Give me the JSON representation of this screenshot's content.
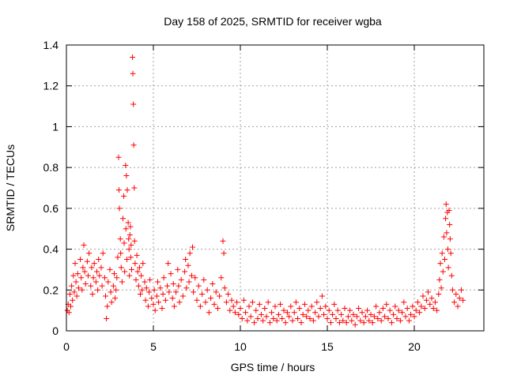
{
  "chart_data": {
    "type": "scatter",
    "title": "Day 158 of 2025, SRMTID for receiver wgba",
    "xlabel": "GPS time / hours",
    "ylabel": "SRMTID / TECUs",
    "xlim": [
      0,
      24
    ],
    "ylim": [
      0,
      1.4
    ],
    "xticks": [
      0,
      5,
      10,
      15,
      20
    ],
    "yticks": [
      0,
      0.2,
      0.4,
      0.6,
      0.8,
      1.0,
      1.2,
      1.4
    ],
    "xtick_labels": [
      "0",
      "5",
      "10",
      "15",
      "20"
    ],
    "ytick_labels": [
      "0",
      "0.2",
      "0.4",
      "0.6",
      "0.8",
      "1",
      "1.2",
      "1.4"
    ],
    "grid": true,
    "marker": "+",
    "color": "#ff0000",
    "series": [
      {
        "name": "SRMTID",
        "points": [
          [
            0.05,
            0.1
          ],
          [
            0.1,
            0.13
          ],
          [
            0.15,
            0.09
          ],
          [
            0.2,
            0.18
          ],
          [
            0.25,
            0.12
          ],
          [
            0.3,
            0.22
          ],
          [
            0.35,
            0.15
          ],
          [
            0.4,
            0.27
          ],
          [
            0.45,
            0.19
          ],
          [
            0.5,
            0.33
          ],
          [
            0.55,
            0.24
          ],
          [
            0.6,
            0.17
          ],
          [
            0.65,
            0.28
          ],
          [
            0.7,
            0.21
          ],
          [
            0.8,
            0.35
          ],
          [
            0.85,
            0.26
          ],
          [
            0.9,
            0.2
          ],
          [
            0.95,
            0.31
          ],
          [
            1.0,
            0.42
          ],
          [
            1.05,
            0.29
          ],
          [
            1.1,
            0.23
          ],
          [
            1.2,
            0.34
          ],
          [
            1.25,
            0.27
          ],
          [
            1.3,
            0.38
          ],
          [
            1.4,
            0.22
          ],
          [
            1.45,
            0.31
          ],
          [
            1.5,
            0.18
          ],
          [
            1.55,
            0.26
          ],
          [
            1.6,
            0.33
          ],
          [
            1.7,
            0.24
          ],
          [
            1.75,
            0.29
          ],
          [
            1.8,
            0.2
          ],
          [
            1.85,
            0.35
          ],
          [
            1.9,
            0.27
          ],
          [
            2.0,
            0.31
          ],
          [
            2.05,
            0.22
          ],
          [
            2.1,
            0.38
          ],
          [
            2.2,
            0.26
          ],
          [
            2.25,
            0.17
          ],
          [
            2.3,
            0.06
          ],
          [
            2.35,
            0.12
          ],
          [
            2.4,
            0.24
          ],
          [
            2.5,
            0.3
          ],
          [
            2.55,
            0.19
          ],
          [
            2.6,
            0.14
          ],
          [
            2.7,
            0.22
          ],
          [
            2.75,
            0.28
          ],
          [
            2.8,
            0.16
          ],
          [
            2.85,
            0.2
          ],
          [
            2.9,
            0.26
          ],
          [
            2.95,
            0.36
          ],
          [
            3.0,
            0.85
          ],
          [
            3.02,
            0.69
          ],
          [
            3.05,
            0.6
          ],
          [
            3.1,
            0.45
          ],
          [
            3.12,
            0.38
          ],
          [
            3.15,
            0.31
          ],
          [
            3.2,
            0.24
          ],
          [
            3.25,
            0.55
          ],
          [
            3.3,
            0.66
          ],
          [
            3.32,
            0.43
          ],
          [
            3.35,
            0.29
          ],
          [
            3.4,
            0.81
          ],
          [
            3.42,
            0.5
          ],
          [
            3.45,
            0.76
          ],
          [
            3.48,
            0.35
          ],
          [
            3.5,
            0.69
          ],
          [
            3.55,
            0.53
          ],
          [
            3.58,
            0.45
          ],
          [
            3.6,
            0.4
          ],
          [
            3.62,
            0.27
          ],
          [
            3.65,
            0.47
          ],
          [
            3.68,
            0.51
          ],
          [
            3.7,
            0.36
          ],
          [
            3.72,
            0.42
          ],
          [
            3.75,
            0.3
          ],
          [
            3.8,
            1.34
          ],
          [
            3.82,
            1.26
          ],
          [
            3.85,
            1.11
          ],
          [
            3.87,
            0.91
          ],
          [
            3.9,
            0.7
          ],
          [
            3.92,
            0.44
          ],
          [
            3.95,
            0.33
          ],
          [
            4.0,
            0.25
          ],
          [
            4.05,
            0.37
          ],
          [
            4.1,
            0.29
          ],
          [
            4.15,
            0.22
          ],
          [
            4.2,
            0.31
          ],
          [
            4.25,
            0.18
          ],
          [
            4.3,
            0.27
          ],
          [
            4.35,
            0.2
          ],
          [
            4.4,
            0.33
          ],
          [
            4.5,
            0.24
          ],
          [
            4.55,
            0.15
          ],
          [
            4.6,
            0.21
          ],
          [
            4.7,
            0.12
          ],
          [
            4.75,
            0.19
          ],
          [
            4.8,
            0.25
          ],
          [
            4.9,
            0.16
          ],
          [
            5.0,
            0.13
          ],
          [
            5.05,
            0.2
          ],
          [
            5.1,
            0.1
          ],
          [
            5.2,
            0.17
          ],
          [
            5.25,
            0.24
          ],
          [
            5.3,
            0.14
          ],
          [
            5.4,
            0.21
          ],
          [
            5.5,
            0.11
          ],
          [
            5.55,
            0.18
          ],
          [
            5.6,
            0.26
          ],
          [
            5.7,
            0.15
          ],
          [
            5.8,
            0.22
          ],
          [
            5.85,
            0.33
          ],
          [
            5.9,
            0.19
          ],
          [
            6.0,
            0.28
          ],
          [
            6.1,
            0.16
          ],
          [
            6.15,
            0.23
          ],
          [
            6.2,
            0.12
          ],
          [
            6.3,
            0.19
          ],
          [
            6.4,
            0.3
          ],
          [
            6.45,
            0.22
          ],
          [
            6.5,
            0.14
          ],
          [
            6.6,
            0.25
          ],
          [
            6.7,
            0.17
          ],
          [
            6.8,
            0.29
          ],
          [
            6.85,
            0.35
          ],
          [
            6.9,
            0.21
          ],
          [
            7.0,
            0.32
          ],
          [
            7.05,
            0.24
          ],
          [
            7.1,
            0.38
          ],
          [
            7.2,
            0.27
          ],
          [
            7.25,
            0.41
          ],
          [
            7.3,
            0.19
          ],
          [
            7.4,
            0.26
          ],
          [
            7.5,
            0.15
          ],
          [
            7.6,
            0.22
          ],
          [
            7.7,
            0.12
          ],
          [
            7.8,
            0.18
          ],
          [
            7.9,
            0.25
          ],
          [
            8.0,
            0.14
          ],
          [
            8.1,
            0.2
          ],
          [
            8.2,
            0.09
          ],
          [
            8.3,
            0.16
          ],
          [
            8.4,
            0.23
          ],
          [
            8.5,
            0.13
          ],
          [
            8.6,
            0.19
          ],
          [
            8.7,
            0.11
          ],
          [
            8.8,
            0.17
          ],
          [
            8.9,
            0.26
          ],
          [
            9.0,
            0.44
          ],
          [
            9.05,
            0.38
          ],
          [
            9.1,
            0.21
          ],
          [
            9.2,
            0.14
          ],
          [
            9.3,
            0.18
          ],
          [
            9.4,
            0.1
          ],
          [
            9.5,
            0.15
          ],
          [
            9.6,
            0.12
          ],
          [
            9.7,
            0.09
          ],
          [
            9.8,
            0.14
          ],
          [
            9.9,
            0.08
          ],
          [
            10.0,
            0.11
          ],
          [
            10.1,
            0.06
          ],
          [
            10.2,
            0.15
          ],
          [
            10.3,
            0.09
          ],
          [
            10.4,
            0.05
          ],
          [
            10.5,
            0.12
          ],
          [
            10.6,
            0.07
          ],
          [
            10.7,
            0.14
          ],
          [
            10.8,
            0.04
          ],
          [
            10.9,
            0.1
          ],
          [
            11.0,
            0.06
          ],
          [
            11.1,
            0.13
          ],
          [
            11.2,
            0.08
          ],
          [
            11.3,
            0.05
          ],
          [
            11.4,
            0.11
          ],
          [
            11.5,
            0.07
          ],
          [
            11.6,
            0.14
          ],
          [
            11.7,
            0.04
          ],
          [
            11.8,
            0.09
          ],
          [
            11.9,
            0.06
          ],
          [
            12.0,
            0.12
          ],
          [
            12.1,
            0.05
          ],
          [
            12.2,
            0.08
          ],
          [
            12.3,
            0.13
          ],
          [
            12.4,
            0.06
          ],
          [
            12.5,
            0.1
          ],
          [
            12.6,
            0.04
          ],
          [
            12.7,
            0.09
          ],
          [
            12.8,
            0.07
          ],
          [
            12.9,
            0.12
          ],
          [
            13.0,
            0.05
          ],
          [
            13.1,
            0.09
          ],
          [
            13.2,
            0.14
          ],
          [
            13.3,
            0.06
          ],
          [
            13.4,
            0.11
          ],
          [
            13.5,
            0.04
          ],
          [
            13.6,
            0.08
          ],
          [
            13.7,
            0.13
          ],
          [
            13.8,
            0.07
          ],
          [
            13.9,
            0.1
          ],
          [
            14.0,
            0.06
          ],
          [
            14.1,
            0.12
          ],
          [
            14.2,
            0.05
          ],
          [
            14.3,
            0.09
          ],
          [
            14.4,
            0.14
          ],
          [
            14.5,
            0.07
          ],
          [
            14.6,
            0.11
          ],
          [
            14.7,
            0.17
          ],
          [
            14.8,
            0.08
          ],
          [
            14.9,
            0.12
          ],
          [
            15.0,
            0.06
          ],
          [
            15.1,
            0.1
          ],
          [
            15.2,
            0.04
          ],
          [
            15.3,
            0.08
          ],
          [
            15.4,
            0.13
          ],
          [
            15.5,
            0.06
          ],
          [
            15.6,
            0.1
          ],
          [
            15.7,
            0.04
          ],
          [
            15.8,
            0.08
          ],
          [
            15.9,
            0.05
          ],
          [
            16.0,
            0.11
          ],
          [
            16.1,
            0.04
          ],
          [
            16.2,
            0.07
          ],
          [
            16.3,
            0.1
          ],
          [
            16.4,
            0.05
          ],
          [
            16.5,
            0.08
          ],
          [
            16.6,
            0.03
          ],
          [
            16.7,
            0.07
          ],
          [
            16.8,
            0.11
          ],
          [
            16.9,
            0.05
          ],
          [
            17.0,
            0.09
          ],
          [
            17.1,
            0.04
          ],
          [
            17.2,
            0.07
          ],
          [
            17.3,
            0.1
          ],
          [
            17.4,
            0.05
          ],
          [
            17.5,
            0.08
          ],
          [
            17.6,
            0.04
          ],
          [
            17.7,
            0.07
          ],
          [
            17.8,
            0.12
          ],
          [
            17.9,
            0.06
          ],
          [
            18.0,
            0.09
          ],
          [
            18.1,
            0.05
          ],
          [
            18.2,
            0.11
          ],
          [
            18.3,
            0.07
          ],
          [
            18.4,
            0.13
          ],
          [
            18.5,
            0.06
          ],
          [
            18.6,
            0.1
          ],
          [
            18.7,
            0.04
          ],
          [
            18.8,
            0.08
          ],
          [
            18.9,
            0.12
          ],
          [
            19.0,
            0.06
          ],
          [
            19.1,
            0.1
          ],
          [
            19.2,
            0.05
          ],
          [
            19.3,
            0.09
          ],
          [
            19.4,
            0.14
          ],
          [
            19.5,
            0.07
          ],
          [
            19.6,
            0.11
          ],
          [
            19.7,
            0.05
          ],
          [
            19.8,
            0.08
          ],
          [
            19.9,
            0.12
          ],
          [
            20.0,
            0.07
          ],
          [
            20.1,
            0.1
          ],
          [
            20.2,
            0.14
          ],
          [
            20.3,
            0.09
          ],
          [
            20.4,
            0.12
          ],
          [
            20.5,
            0.17
          ],
          [
            20.6,
            0.11
          ],
          [
            20.7,
            0.15
          ],
          [
            20.8,
            0.19
          ],
          [
            20.9,
            0.13
          ],
          [
            21.0,
            0.16
          ],
          [
            21.1,
            0.11
          ],
          [
            21.2,
            0.14
          ],
          [
            21.3,
            0.1
          ],
          [
            21.4,
            0.18
          ],
          [
            21.45,
            0.25
          ],
          [
            21.5,
            0.33
          ],
          [
            21.55,
            0.21
          ],
          [
            21.6,
            0.38
          ],
          [
            21.65,
            0.29
          ],
          [
            21.7,
            0.46
          ],
          [
            21.75,
            0.35
          ],
          [
            21.8,
            0.55
          ],
          [
            21.83,
            0.62
          ],
          [
            21.86,
            0.48
          ],
          [
            21.9,
            0.58
          ],
          [
            21.93,
            0.4
          ],
          [
            21.96,
            0.31
          ],
          [
            22.0,
            0.59
          ],
          [
            22.03,
            0.52
          ],
          [
            22.06,
            0.45
          ],
          [
            22.1,
            0.38
          ],
          [
            22.15,
            0.27
          ],
          [
            22.2,
            0.2
          ],
          [
            22.3,
            0.14
          ],
          [
            22.4,
            0.18
          ],
          [
            22.5,
            0.12
          ],
          [
            22.6,
            0.16
          ],
          [
            22.7,
            0.2
          ],
          [
            22.8,
            0.15
          ]
        ]
      }
    ]
  }
}
